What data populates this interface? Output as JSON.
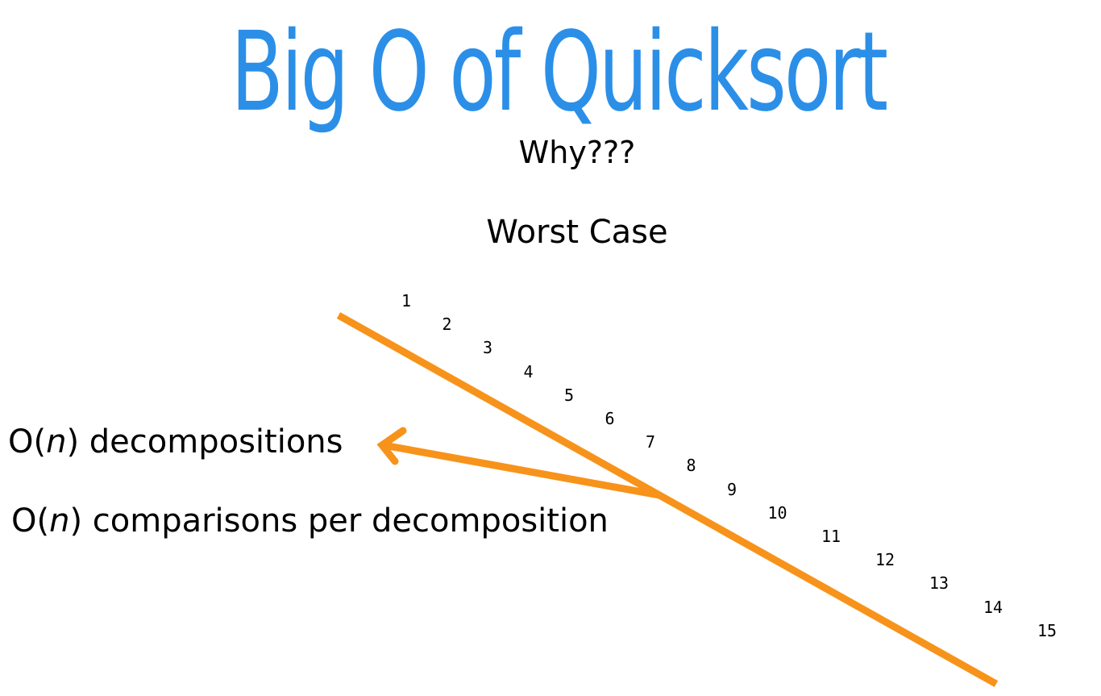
{
  "title": "Big O of Quicksort",
  "subtitle": "Why???",
  "case_label": "Worst Case",
  "labels": {
    "decompositions_prefix": "O(",
    "decompositions_var": "n",
    "decompositions_suffix": ") decompositions",
    "comparisons_prefix": "O(",
    "comparisons_var": "n",
    "comparisons_suffix": ") comparisons per decomposition"
  },
  "sequence": [
    "1",
    "2",
    "3",
    "4",
    "5",
    "6",
    "7",
    "8",
    "9",
    "10",
    "11",
    "12",
    "13",
    "14",
    "15"
  ],
  "colors": {
    "title": "#2b8fe8",
    "annotation": "#f7931a"
  }
}
